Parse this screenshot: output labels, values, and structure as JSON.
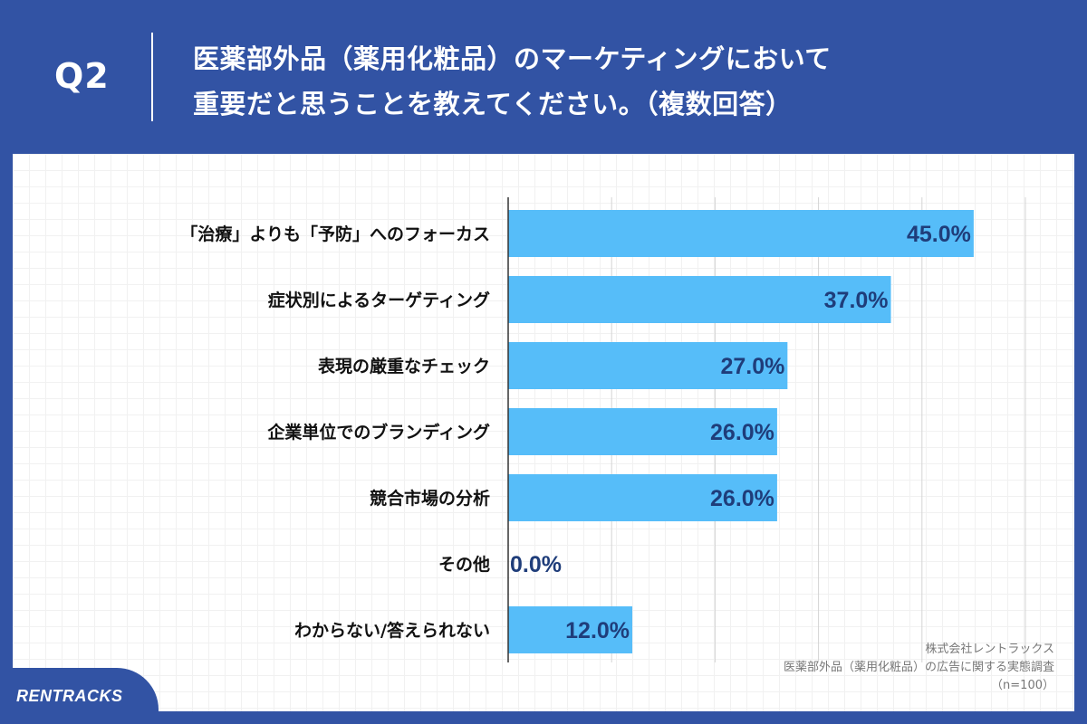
{
  "header": {
    "q_label": "Q2",
    "question_line1": "医薬部外品（薬用化粧品）のマーケティングにおいて",
    "question_line2": "重要だと思うことを教えてください。（複数回答）"
  },
  "chart_data": {
    "type": "bar",
    "orientation": "horizontal",
    "categories": [
      "「治療」よりも「予防」へのフォーカス",
      "症状別によるターゲティング",
      "表現の厳重なチェック",
      "企業単位でのブランディング",
      "競合市場の分析",
      "その他",
      "わからない/答えられない"
    ],
    "values": [
      45.0,
      37.0,
      27.0,
      26.0,
      26.0,
      0.0,
      12.0
    ],
    "value_labels": [
      "45.0%",
      "37.0%",
      "27.0%",
      "26.0%",
      "26.0%",
      "0.0%",
      "12.0%"
    ],
    "xlim": [
      0,
      50
    ],
    "grid": true,
    "legend": "none",
    "bar_color": "#56bdf9",
    "value_label_color": "#1f3d7a"
  },
  "source": {
    "company": "株式会社レントラックス",
    "survey": "医薬部外品（薬用化粧品）の広告に関する実態調査",
    "sample": "（n=100）"
  },
  "branding": {
    "logo_text": "RENTRACKS",
    "brand_color": "#3253a4"
  }
}
